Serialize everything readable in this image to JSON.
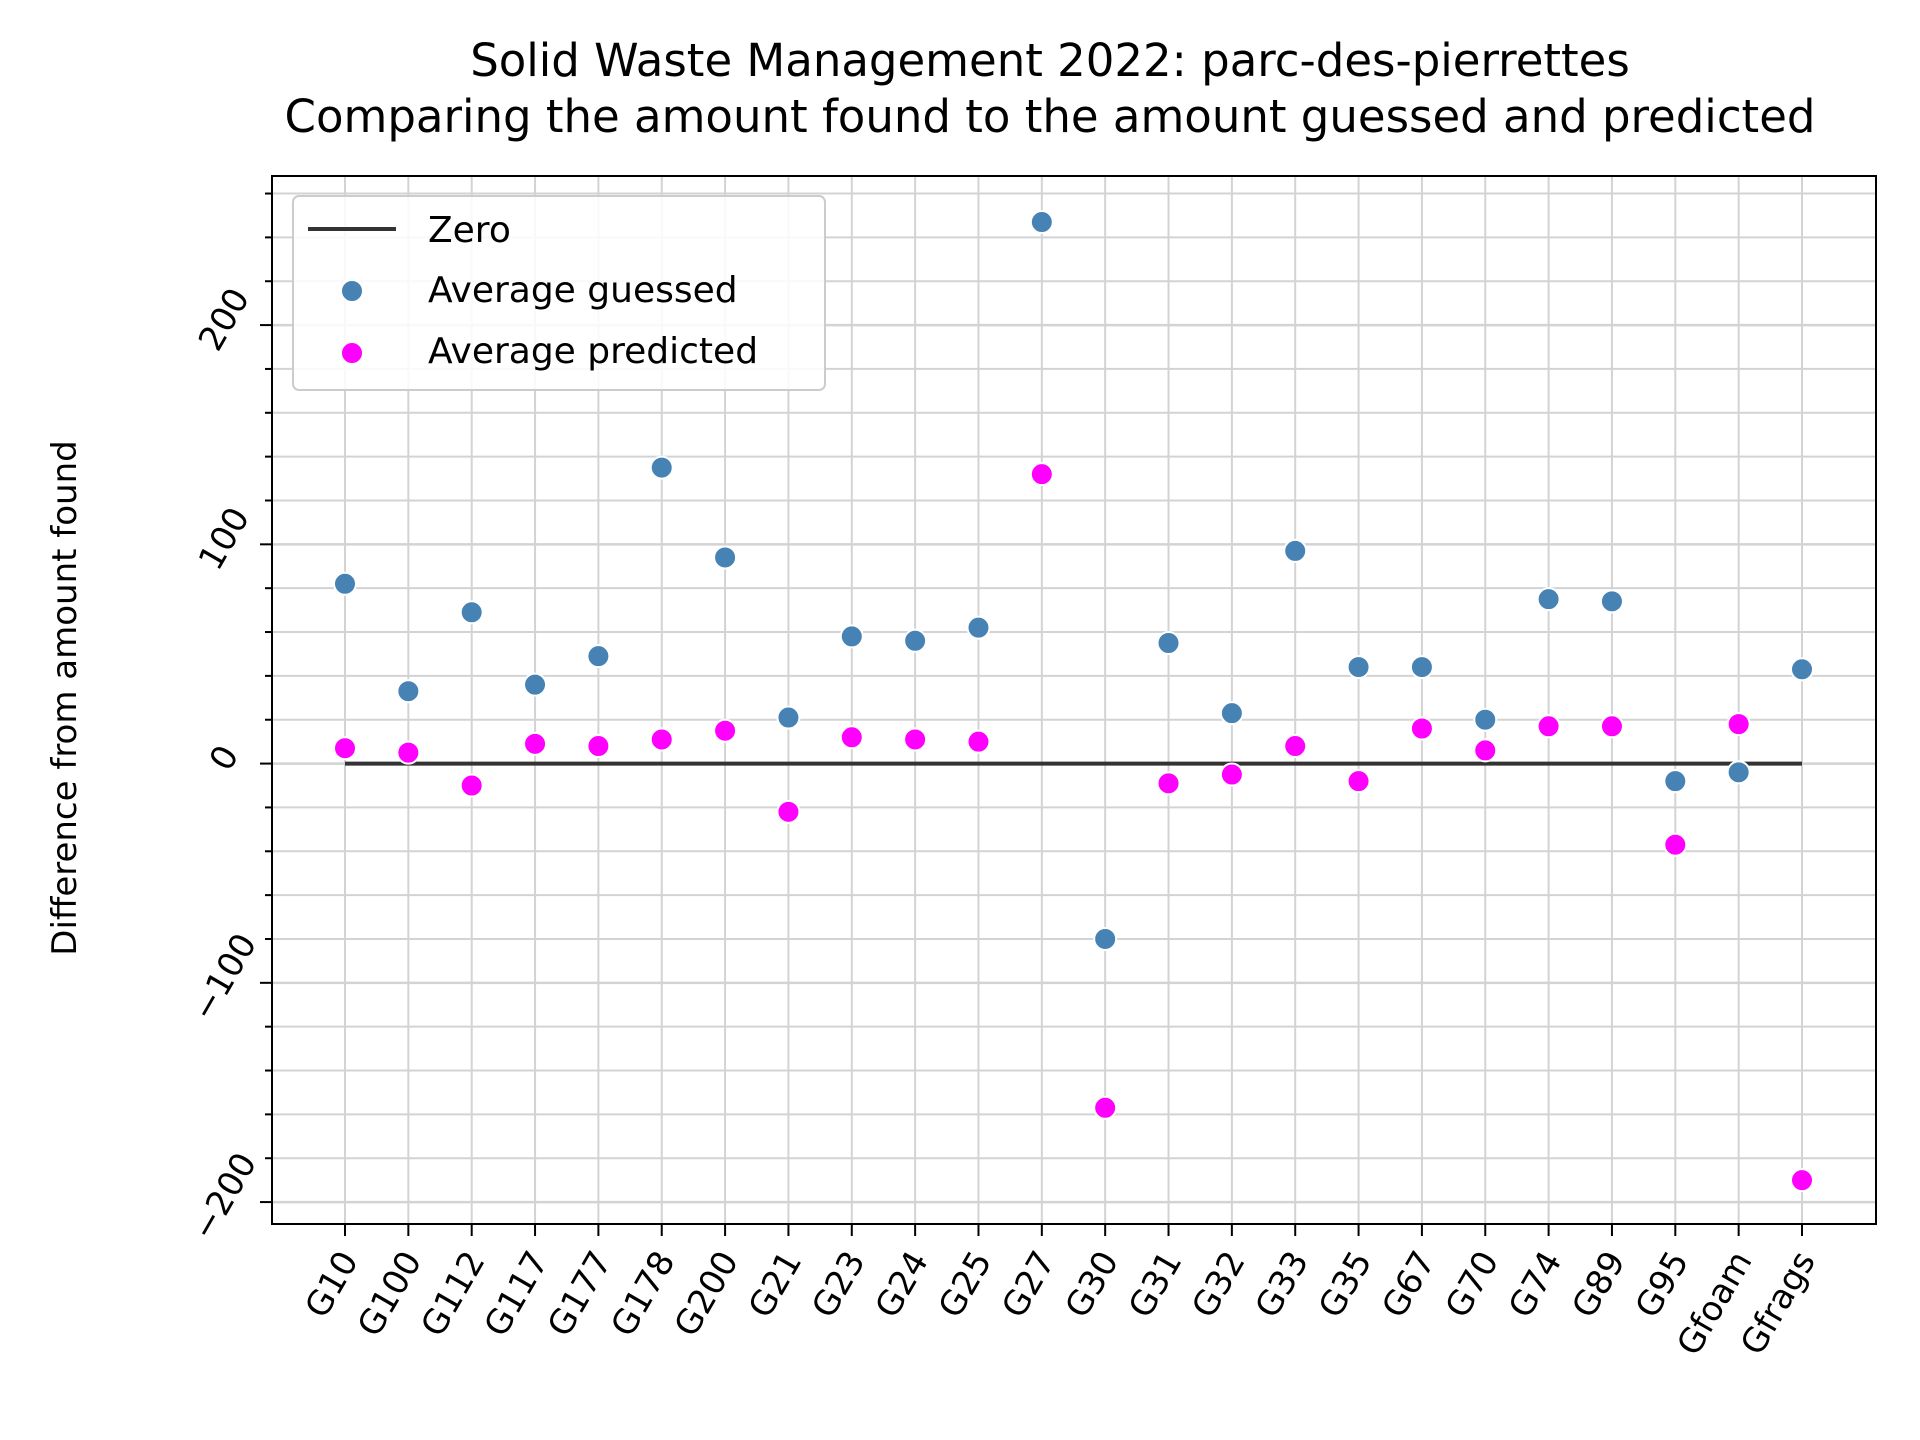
{
  "title_line1": "Solid Waste Management 2022: parc-des-pierrettes",
  "title_line2": "Comparing the amount found to the amount guessed and predicted",
  "colors": {
    "guessed": "#4682b4",
    "predicted": "#ff00ff",
    "zero": "#333333",
    "grid": "#d3d3d3"
  },
  "chart_data": {
    "type": "scatter",
    "title": "Solid Waste Management 2022: parc-des-pierrettes\nComparing the amount found to the amount guessed and predicted",
    "xlabel": "",
    "ylabel": "Difference from amount found",
    "ylim": [
      -210,
      268
    ],
    "yticks": [
      -200,
      -100,
      0,
      100,
      200
    ],
    "ytick_labels": [
      "−200",
      "−100",
      "0",
      "100",
      "200"
    ],
    "grid": true,
    "legend_position": "upper-left",
    "categories": [
      "G10",
      "G100",
      "G112",
      "G117",
      "G177",
      "G178",
      "G200",
      "G21",
      "G23",
      "G24",
      "G25",
      "G27",
      "G30",
      "G31",
      "G32",
      "G33",
      "G35",
      "G67",
      "G70",
      "G74",
      "G89",
      "G95",
      "Gfoam",
      "Gfrags"
    ],
    "series": [
      {
        "name": "Zero",
        "kind": "line",
        "values": [
          0,
          0,
          0,
          0,
          0,
          0,
          0,
          0,
          0,
          0,
          0,
          0,
          0,
          0,
          0,
          0,
          0,
          0,
          0,
          0,
          0,
          0,
          0,
          0
        ]
      },
      {
        "name": "Average guessed",
        "kind": "scatter",
        "values": [
          82,
          33,
          69,
          36,
          49,
          135,
          94,
          21,
          58,
          56,
          62,
          247,
          -80,
          55,
          23,
          97,
          44,
          44,
          20,
          75,
          74,
          -8,
          -4,
          43
        ]
      },
      {
        "name": "Average predicted",
        "kind": "scatter",
        "values": [
          7,
          5,
          -10,
          9,
          8,
          11,
          15,
          -22,
          12,
          11,
          10,
          132,
          -157,
          -9,
          -5,
          8,
          -8,
          16,
          6,
          17,
          17,
          -37,
          18,
          -190
        ]
      }
    ]
  }
}
